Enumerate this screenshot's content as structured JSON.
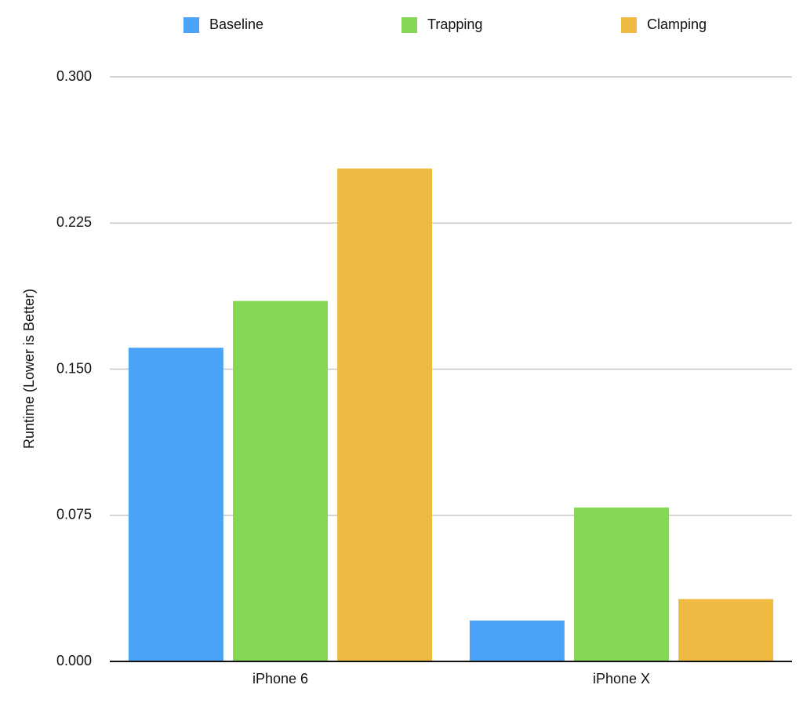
{
  "chart_data": {
    "type": "bar",
    "y_label": "Runtime (Lower is Better)",
    "categories": [
      "iPhone 6",
      "iPhone X"
    ],
    "series": [
      {
        "name": "Baseline",
        "color": "#4aa3f8",
        "values": [
          0.161,
          0.021
        ]
      },
      {
        "name": "Trapping",
        "color": "#84d654",
        "values": [
          0.185,
          0.079
        ]
      },
      {
        "name": "Clamping",
        "color": "#efba41",
        "values": [
          0.253,
          0.032
        ]
      }
    ],
    "ylim": [
      0,
      0.3
    ],
    "yticks": [
      {
        "value": 0,
        "label": "0.000"
      },
      {
        "value": 0.075,
        "label": "0.075"
      },
      {
        "value": 0.15,
        "label": "0.150"
      },
      {
        "value": 0.225,
        "label": "0.225"
      },
      {
        "value": 0.3,
        "label": "0.300"
      }
    ],
    "grid": true,
    "legend": "top"
  }
}
